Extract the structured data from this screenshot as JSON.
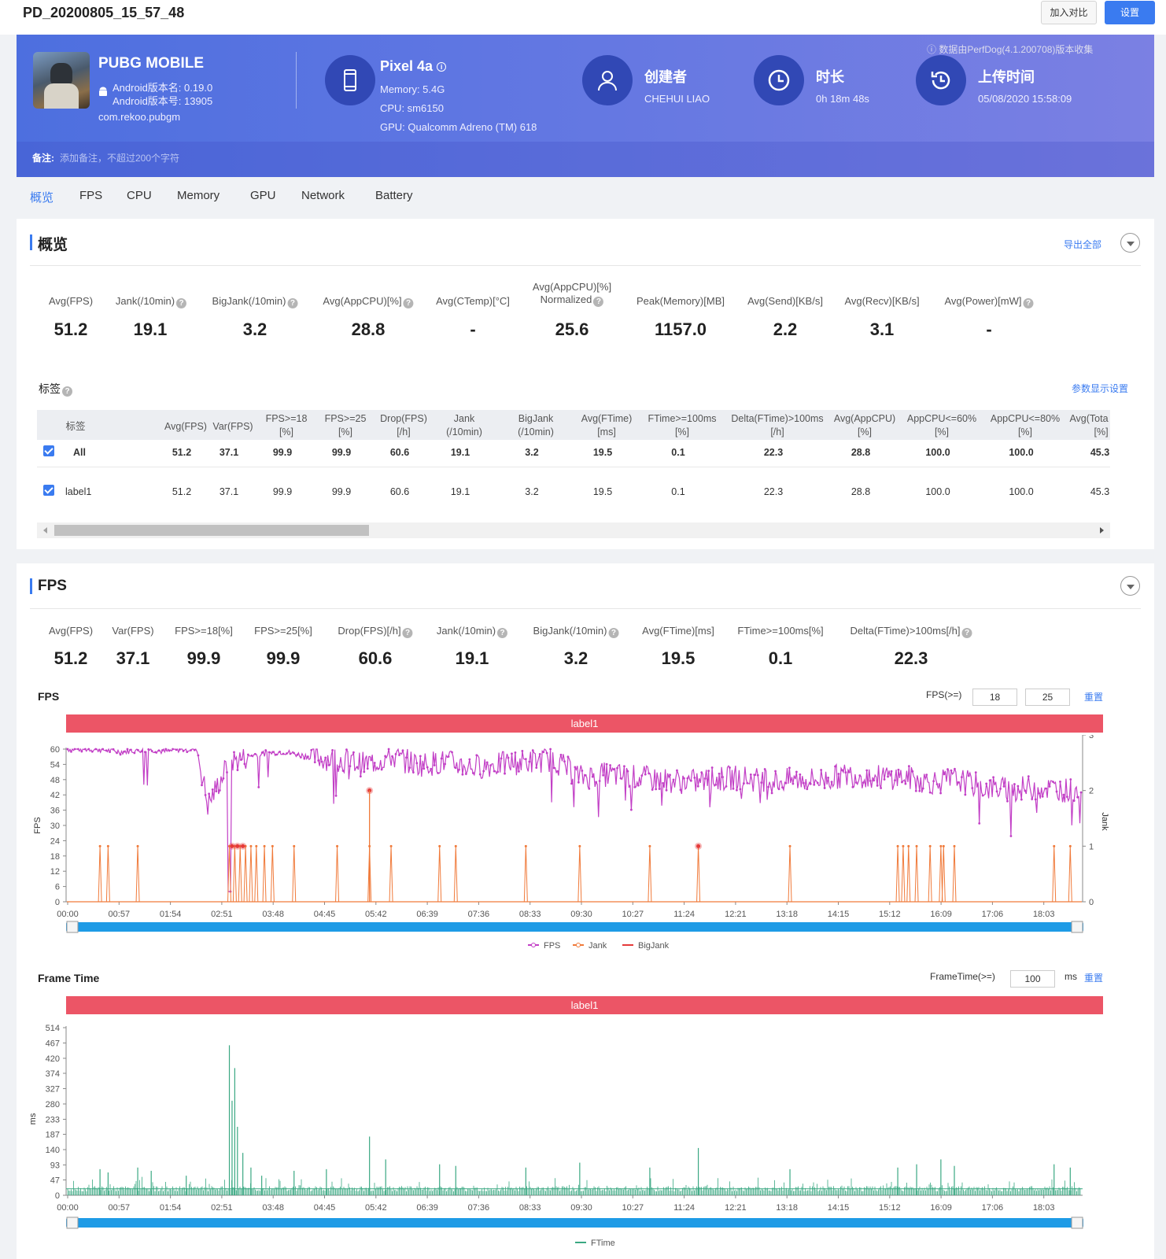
{
  "page_title": "PD_20200805_15_57_48",
  "top_buttons": {
    "compare": "加入对比",
    "settings": "设置"
  },
  "app": {
    "name": "PUBG MOBILE",
    "version_name": "Android版本名: 0.19.0",
    "version_code": "Android版本号: 13905",
    "package": "com.rekoo.pubgm"
  },
  "device": {
    "name": "Pixel 4a",
    "memory": "Memory: 5.4G",
    "cpu": "CPU: sm6150",
    "gpu": "GPU: Qualcomm Adreno (TM) 618"
  },
  "creator": {
    "title": "创建者",
    "value": "CHEHUI LIAO"
  },
  "duration": {
    "title": "时长",
    "value": "0h 18m 48s"
  },
  "upload": {
    "title": "上传时间",
    "value": "05/08/2020 15:58:09"
  },
  "source_note": "数据由PerfDog(4.1.200708)版本收集",
  "remark": {
    "label": "备注:",
    "placeholder": "添加备注，不超过200个字符"
  },
  "tabs": [
    "概览",
    "FPS",
    "CPU",
    "Memory",
    "GPU",
    "Network",
    "Battery"
  ],
  "overview": {
    "title": "概览",
    "export_all": "导出全部",
    "metrics": [
      {
        "label": "Avg(FPS)",
        "value": "51.2",
        "help": false
      },
      {
        "label": "Jank(/10min)",
        "value": "19.1",
        "help": true
      },
      {
        "label": "BigJank(/10min)",
        "value": "3.2",
        "help": true
      },
      {
        "label": "Avg(AppCPU)[%]",
        "value": "28.8",
        "help": true
      },
      {
        "label": "Avg(CTemp)[°C]",
        "value": "-",
        "help": false
      },
      {
        "label": "Avg(AppCPU)[%]",
        "label2": "Normalized",
        "value": "25.6",
        "help": true
      },
      {
        "label": "Peak(Memory)[MB]",
        "value": "1157.0",
        "help": false
      },
      {
        "label": "Avg(Send)[KB/s]",
        "value": "2.2",
        "help": false
      },
      {
        "label": "Avg(Recv)[KB/s]",
        "value": "3.1",
        "help": false
      },
      {
        "label": "Avg(Power)[mW]",
        "value": "-",
        "help": true
      }
    ],
    "labels_title": "标签",
    "param_settings": "参数显示设置",
    "table": {
      "headers": [
        [
          "标签"
        ],
        [
          "Avg(FPS)"
        ],
        [
          "Var(FPS)"
        ],
        [
          "FPS>=18",
          "[%]"
        ],
        [
          "FPS>=25",
          "[%]"
        ],
        [
          "Drop(FPS)",
          "[/h]"
        ],
        [
          "Jank",
          "(/10min)"
        ],
        [
          "BigJank",
          "(/10min)"
        ],
        [
          "Avg(FTime)",
          "[ms]"
        ],
        [
          "FTime>=100ms",
          "[%]"
        ],
        [
          "Delta(FTime)>100ms",
          "[/h]"
        ],
        [
          "Avg(AppCPU)",
          "[%]"
        ],
        [
          "AppCPU<=60%",
          "[%]"
        ],
        [
          "AppCPU<=80%",
          "[%]"
        ],
        [
          "Avg(Tota",
          "[%]"
        ]
      ],
      "rows": [
        {
          "name": "All",
          "values": [
            "51.2",
            "37.1",
            "99.9",
            "99.9",
            "60.6",
            "19.1",
            "3.2",
            "19.5",
            "0.1",
            "22.3",
            "28.8",
            "100.0",
            "100.0",
            "45.3"
          ]
        },
        {
          "name": "label1",
          "values": [
            "51.2",
            "37.1",
            "99.9",
            "99.9",
            "60.6",
            "19.1",
            "3.2",
            "19.5",
            "0.1",
            "22.3",
            "28.8",
            "100.0",
            "100.0",
            "45.3"
          ]
        }
      ]
    }
  },
  "fps_section": {
    "title": "FPS",
    "metrics": [
      {
        "label": "Avg(FPS)",
        "value": "51.2",
        "help": false
      },
      {
        "label": "Var(FPS)",
        "value": "37.1",
        "help": false
      },
      {
        "label": "FPS>=18[%]",
        "value": "99.9",
        "help": false
      },
      {
        "label": "FPS>=25[%]",
        "value": "99.9",
        "help": false
      },
      {
        "label": "Drop(FPS)[/h]",
        "value": "60.6",
        "help": true
      },
      {
        "label": "Jank(/10min)",
        "value": "19.1",
        "help": true
      },
      {
        "label": "BigJank(/10min)",
        "value": "3.2",
        "help": true
      },
      {
        "label": "Avg(FTime)[ms]",
        "value": "19.5",
        "help": false
      },
      {
        "label": "FTime>=100ms[%]",
        "value": "0.1",
        "help": false
      },
      {
        "label": "Delta(FTime)>100ms[/h]",
        "value": "22.3",
        "help": true
      }
    ],
    "fps_chart": {
      "title": "FPS",
      "threshold_label": "FPS(>=)",
      "threshold_1": "18",
      "threshold_2": "25",
      "reset": "重置",
      "label_bar": "label1"
    },
    "frametime_chart": {
      "title": "Frame Time",
      "threshold_label": "FrameTime(>=)",
      "threshold": "100",
      "unit": "ms",
      "reset": "重置",
      "label_bar": "label1"
    }
  },
  "chart_data": [
    {
      "type": "line",
      "xlabel": "",
      "ylabel": "FPS",
      "y2label": "Jank",
      "x_ticks": [
        "00:00",
        "00:57",
        "01:54",
        "02:51",
        "03:48",
        "04:45",
        "05:42",
        "06:39",
        "07:36",
        "08:33",
        "09:30",
        "10:27",
        "11:24",
        "12:21",
        "13:18",
        "14:15",
        "15:12",
        "16:09",
        "17:06",
        "18:03"
      ],
      "y_ticks": [
        0,
        6,
        12,
        18,
        24,
        30,
        36,
        42,
        48,
        54,
        60
      ],
      "y2_ticks": [
        0,
        1,
        2,
        3
      ],
      "ylim": [
        0,
        60
      ],
      "y2lim": [
        0,
        3
      ],
      "legend": [
        "FPS",
        "Jank",
        "BigJank"
      ],
      "legend_position": "bottom",
      "series": [
        {
          "name": "FPS",
          "color": "#c23fc6",
          "x_minutes": [
            0,
            0.5,
            1,
            1.5,
            1.8,
            2.1,
            2.4,
            2.6,
            3,
            3.5,
            4,
            4.5,
            5,
            5.5,
            6,
            6.5,
            7,
            7.5,
            8,
            8.5,
            9,
            9.5,
            10,
            10.5,
            11,
            11.5,
            12,
            12.5,
            13,
            13.5,
            14,
            14.5,
            15,
            15.5,
            16,
            16.5,
            17,
            17.5,
            18,
            18.5,
            18.8
          ],
          "values": [
            60,
            60,
            59,
            60,
            59,
            60,
            60,
            38,
            55,
            58,
            59,
            57,
            56,
            54,
            57,
            54,
            55,
            53,
            54,
            55,
            56,
            49,
            50,
            49,
            48,
            47,
            48,
            49,
            47,
            48,
            48,
            50,
            49,
            49,
            47,
            48,
            45,
            44,
            45,
            44,
            43
          ]
        },
        {
          "name": "Jank",
          "color": "#f07a3a",
          "x_minutes": [
            0.6,
            0.75,
            1.3,
            3.0,
            3.1,
            3.2,
            3.3,
            3.4,
            3.5,
            3.65,
            3.8,
            4.2,
            5.0,
            5.6,
            6.0,
            6.9,
            7.2,
            8.5,
            9.5,
            10.8,
            11.7,
            13.4,
            15.4,
            15.5,
            15.6,
            15.75,
            16.0,
            16.2,
            16.25,
            16.45,
            18.3,
            18.6
          ],
          "values": [
            1,
            1,
            1,
            1,
            1,
            1,
            1,
            1,
            1,
            1,
            1,
            1,
            1,
            1,
            1,
            1,
            1,
            1,
            1,
            1,
            1,
            1,
            1,
            1,
            1,
            1,
            1,
            1,
            1,
            1,
            1,
            1
          ]
        },
        {
          "name": "BigJank",
          "color": "#e53a3a",
          "x_minutes": [
            3.05,
            3.15,
            3.25,
            5.6,
            11.7
          ],
          "values": [
            1,
            1,
            1,
            2,
            1
          ]
        }
      ]
    },
    {
      "type": "line",
      "xlabel": "",
      "ylabel": "ms",
      "x_ticks": [
        "00:00",
        "00:57",
        "01:54",
        "02:51",
        "03:48",
        "04:45",
        "05:42",
        "06:39",
        "07:36",
        "08:33",
        "09:30",
        "10:27",
        "11:24",
        "12:21",
        "13:18",
        "14:15",
        "15:12",
        "16:09",
        "17:06",
        "18:03"
      ],
      "y_ticks": [
        0,
        47,
        93,
        140,
        187,
        233,
        280,
        327,
        374,
        420,
        467,
        514
      ],
      "ylim": [
        0,
        514
      ],
      "legend": [
        "FTime"
      ],
      "legend_position": "bottom",
      "series": [
        {
          "name": "FTime",
          "color": "#3aa882",
          "spikes_x_minutes": [
            0.6,
            0.75,
            1.3,
            1.55,
            2.2,
            3.0,
            3.05,
            3.1,
            3.15,
            3.25,
            3.4,
            3.6,
            4.2,
            4.8,
            5.6,
            5.9,
            6.9,
            7.2,
            8.5,
            9.5,
            10.8,
            11.7,
            13.4,
            15.4,
            15.75,
            16.2,
            16.45,
            18.3,
            18.6
          ],
          "spike_values": [
            80,
            70,
            85,
            75,
            60,
            460,
            290,
            390,
            210,
            130,
            85,
            60,
            75,
            80,
            180,
            110,
            95,
            90,
            85,
            100,
            85,
            145,
            80,
            85,
            95,
            110,
            90,
            95,
            85
          ],
          "baseline": 20
        }
      ]
    }
  ]
}
